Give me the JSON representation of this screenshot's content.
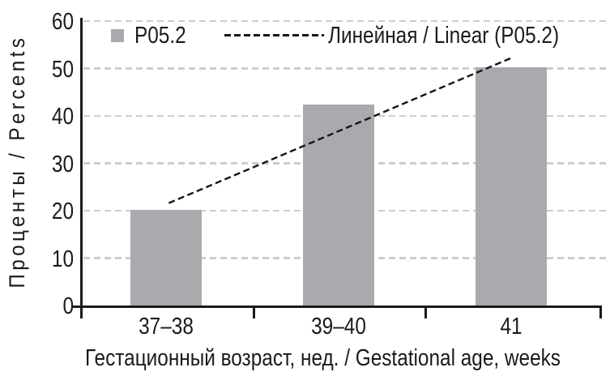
{
  "figure": {
    "type_note": "grouped bar chart with linear trendline, black-and-white journal style",
    "background_color": "#ffffff",
    "axis_color": "#1a1a1a",
    "text_color": "#1b1b1f",
    "gridline_color": "#cdcdcd",
    "bar_color": "#a8aaad"
  },
  "legend": {
    "bar_series_label": "P05.2",
    "trendline_label": "Линейная / Linear (P05.2)"
  },
  "chart_data": {
    "type": "bar",
    "title": "",
    "xlabel": "Гестационный возраст, нед. / Gestational age, weeks",
    "ylabel": "Проценты / Percents",
    "categories": [
      "37–38",
      "39–40",
      "41"
    ],
    "series": [
      {
        "name": "P05.2",
        "values": [
          20.2,
          42.4,
          50.2
        ],
        "color": "#a8aaad"
      }
    ],
    "trendline": {
      "name": "Линейная / Linear (P05.2)",
      "style": "dashed",
      "color": "#17171b",
      "start_category_index": 0,
      "end_category_index": 2,
      "start_value": 21.6,
      "end_value": 52.4
    },
    "ylim": [
      0,
      60
    ],
    "yticks": [
      0,
      10,
      20,
      30,
      40,
      50,
      60
    ],
    "grid": "horizontal dashed",
    "legend_position": "top-left inside plot"
  }
}
